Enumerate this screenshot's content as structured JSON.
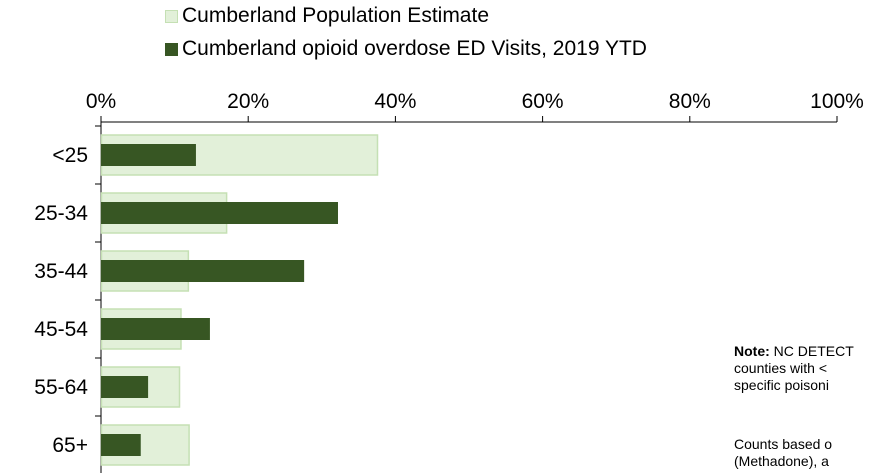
{
  "colors": {
    "population_fill": "#e2f0d9",
    "population_border": "#c5e0b4",
    "ed_visits": "#375623",
    "axis": "#000000"
  },
  "chart_data": {
    "type": "bar",
    "orientation": "horizontal",
    "categories": [
      "<25",
      "25-34",
      "35-44",
      "45-54",
      "55-64",
      "65+"
    ],
    "series": [
      {
        "name": "Cumberland Population Estimate",
        "values": [
          37.5,
          17.0,
          11.8,
          10.8,
          10.6,
          11.9
        ]
      },
      {
        "name": "Cumberland opioid overdose ED Visits, 2019 YTD",
        "values": [
          12.9,
          32.2,
          27.6,
          14.8,
          6.4,
          5.4
        ]
      }
    ],
    "x_ticks": [
      "0%",
      "20%",
      "40%",
      "60%",
      "80%",
      "100%"
    ],
    "xlim": [
      0,
      100
    ],
    "x_axis_position": "top",
    "legend_position": "top",
    "grid": false
  },
  "legend": {
    "population_label": "Cumberland Population Estimate",
    "ed_label": "Cumberland opioid overdose ED Visits, 2019 YTD"
  },
  "note": {
    "bold": "Note:",
    "line1_rest": " NC DETECT",
    "line2": "counties with <",
    "line3": "specific poisoni",
    "line4": "Counts based o",
    "line5": "(Methadone), a"
  }
}
